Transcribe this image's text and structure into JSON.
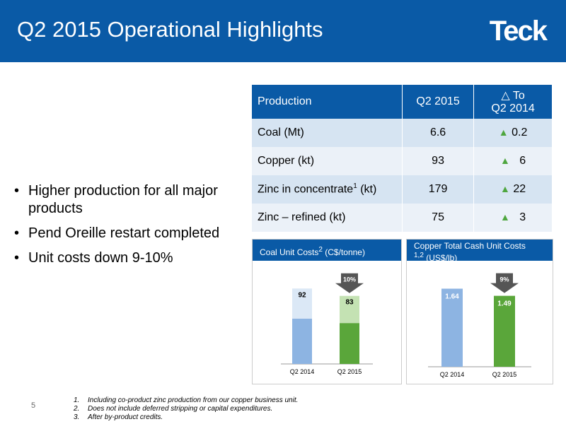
{
  "header": {
    "title": "Q2 2015 Operational Highlights",
    "logo": "Teck"
  },
  "bullets": [
    "Higher production for all major products",
    "Pend Oreille restart completed",
    "Unit costs down 9-10%"
  ],
  "production_table": {
    "headers": [
      "Production",
      "Q2 2015",
      "△ To",
      "Q2 2014"
    ],
    "rows": [
      {
        "name": "Coal (Mt)",
        "sup": "",
        "unit": "",
        "q2_2015": "6.6",
        "change": "0.2"
      },
      {
        "name": "Copper (kt)",
        "sup": "",
        "unit": "",
        "q2_2015": "93",
        "change": "6"
      },
      {
        "name": "Zinc in concentrate",
        "sup": "1",
        "unit": " (kt)",
        "q2_2015": "179",
        "change": "22"
      },
      {
        "name": "Zinc – refined (kt)",
        "sup": "",
        "unit": "",
        "q2_2015": "75",
        "change": "3"
      }
    ],
    "up_icon": "triangle-up-icon",
    "up_color": "#4ea63f"
  },
  "colors": {
    "header_blue": "#0a5aa6",
    "bar_2014_dark": "#8db4e2",
    "bar_2014_light": "#dbe8f6",
    "bar_2015_dark": "#5aa63a",
    "bar_2015_light": "#c4e2b3",
    "arrow": "#555555"
  },
  "chart_data": [
    {
      "type": "bar",
      "title": "Coal Unit Costs",
      "title_sup": "2",
      "title_unit": " (C$/tonne)",
      "categories": [
        "Q2 2014",
        "Q2 2015"
      ],
      "values": [
        92,
        83
      ],
      "change_label": "10%",
      "change_icon": "arrow-down-icon",
      "ylim": [
        0,
        100
      ],
      "grid": false,
      "legend": "none"
    },
    {
      "type": "bar",
      "title": "Copper Total Cash Unit Costs",
      "title_sup": "1,2",
      "title_unit": " (US$/lb)",
      "categories": [
        "Q2 2014",
        "Q2 2015"
      ],
      "values": [
        1.64,
        1.49
      ],
      "change_label": "9%",
      "change_icon": "arrow-down-icon",
      "ylim": [
        0,
        1.9
      ],
      "grid": false,
      "legend": "none"
    }
  ],
  "page_number": "5",
  "footnotes": [
    {
      "num": "1.",
      "text": "Including co-product zinc production from our copper business unit."
    },
    {
      "num": "2.",
      "text": "Does not include deferred stripping or capital expenditures."
    },
    {
      "num": "3.",
      "text": "After by-product credits."
    }
  ]
}
